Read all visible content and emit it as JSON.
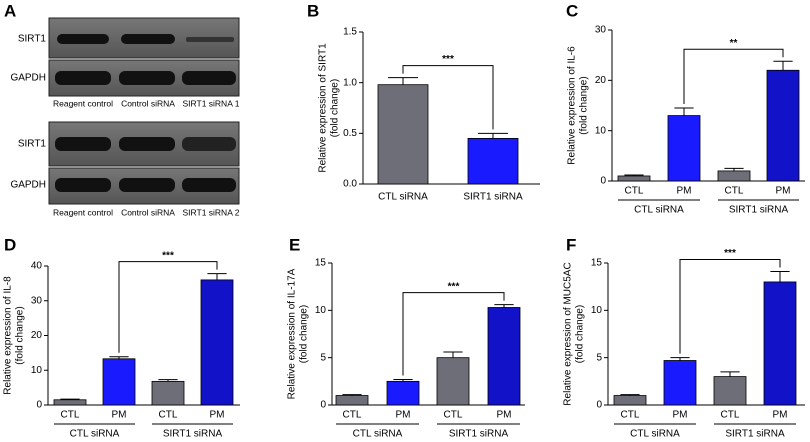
{
  "blot": {
    "panel": "A",
    "blocks": [
      {
        "rows": [
          "SIRT1",
          "GAPDH"
        ],
        "lanes": [
          "Reagent control",
          "Control siRNA",
          "SIRT1 siRNA 1"
        ]
      },
      {
        "rows": [
          "SIRT1",
          "GAPDH"
        ],
        "lanes": [
          "Reagent control",
          "Control siRNA",
          "SIRT1 siRNA 2"
        ]
      }
    ]
  },
  "chart_data": [
    {
      "type": "bar",
      "panel": "B",
      "ylabel": [
        "Relative expression of SIRT1",
        "(fold change)"
      ],
      "categories": [
        "CTL siRNA",
        "SIRT1 siRNA"
      ],
      "values": [
        0.98,
        0.45
      ],
      "errors": [
        0.07,
        0.05
      ],
      "colors": [
        "#6e6e78",
        "#1a1aff"
      ],
      "ylim": [
        0,
        1.5
      ],
      "yticks": [
        {
          "value": 0,
          "label": "0.0"
        },
        0.5,
        {
          "value": 1,
          "label": "1.0"
        },
        1.5
      ],
      "comparison": {
        "from": 0,
        "to": 1,
        "label": "***"
      }
    },
    {
      "type": "bar",
      "panel": "C",
      "ylabel": [
        "Relative expression of IL-6",
        "(fold change)"
      ],
      "categories": [
        "CTL",
        "PM",
        "CTL",
        "PM"
      ],
      "groups": [
        "CTL siRNA",
        "SIRT1 siRNA"
      ],
      "values": [
        1.0,
        13.0,
        2.0,
        22.0
      ],
      "errors": [
        0.2,
        1.5,
        0.5,
        1.8
      ],
      "colors": [
        "#6e6e78",
        "#1a1aff",
        "#6e6e78",
        "#1212c8"
      ],
      "ylim": [
        0,
        30
      ],
      "yticks": [
        0,
        10,
        20,
        30
      ],
      "comparison": {
        "from": 1,
        "to": 3,
        "label": "**"
      }
    },
    {
      "type": "bar",
      "panel": "D",
      "ylabel": [
        "Relative expression of IL-8",
        "(fold change)"
      ],
      "categories": [
        "CTL",
        "PM",
        "CTL",
        "PM"
      ],
      "groups": [
        "CTL siRNA",
        "SIRT1 siRNA"
      ],
      "values": [
        1.5,
        13.3,
        6.8,
        36.0
      ],
      "errors": [
        0.2,
        0.6,
        0.5,
        1.8
      ],
      "colors": [
        "#6e6e78",
        "#1a1aff",
        "#6e6e78",
        "#1212c8"
      ],
      "ylim": [
        0,
        40
      ],
      "yticks": [
        0,
        10,
        20,
        30,
        40
      ],
      "comparison": {
        "from": 1,
        "to": 3,
        "label": "***"
      }
    },
    {
      "type": "bar",
      "panel": "E",
      "ylabel": [
        "Relative expression of IL-17A",
        "(fold change)"
      ],
      "categories": [
        "CTL",
        "PM",
        "CTL",
        "PM"
      ],
      "groups": [
        "CTL siRNA",
        "SIRT1 siRNA"
      ],
      "values": [
        1.0,
        2.5,
        5.0,
        10.3
      ],
      "errors": [
        0.1,
        0.2,
        0.6,
        0.3
      ],
      "colors": [
        "#6e6e78",
        "#1a1aff",
        "#6e6e78",
        "#1212c8"
      ],
      "ylim": [
        0,
        15
      ],
      "yticks": [
        0,
        5,
        10,
        15
      ],
      "comparison": {
        "from": 1,
        "to": 3,
        "label": "***"
      }
    },
    {
      "type": "bar",
      "panel": "F",
      "ylabel": [
        "Relative expression of MUC5AC",
        "(fold change)"
      ],
      "categories": [
        "CTL",
        "PM",
        "CTL",
        "PM"
      ],
      "groups": [
        "CTL siRNA",
        "SIRT1 siRNA"
      ],
      "values": [
        1.0,
        4.7,
        3.0,
        13.0
      ],
      "errors": [
        0.1,
        0.3,
        0.5,
        1.1
      ],
      "colors": [
        "#6e6e78",
        "#1a1aff",
        "#6e6e78",
        "#1212c8"
      ],
      "ylim": [
        0,
        15
      ],
      "yticks": [
        0,
        5,
        10,
        15
      ],
      "comparison": {
        "from": 1,
        "to": 3,
        "label": "***"
      }
    }
  ]
}
